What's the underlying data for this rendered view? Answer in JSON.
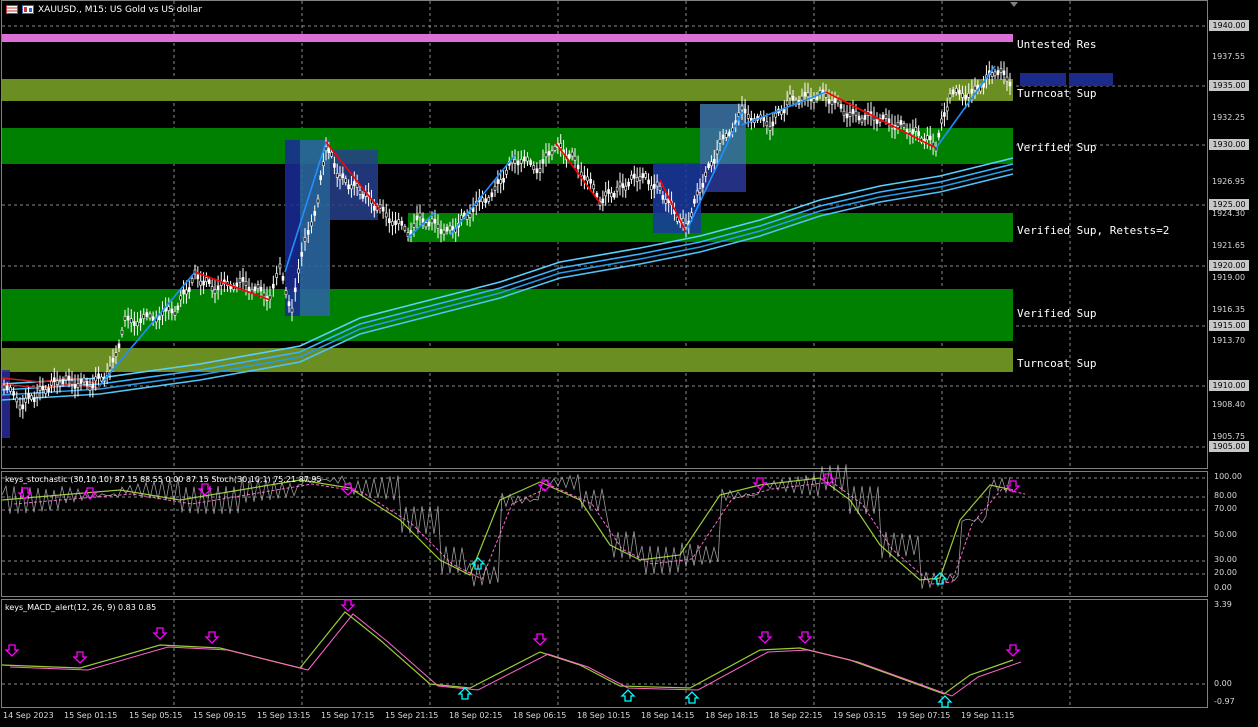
{
  "header": {
    "symbol_line": "XAUUSD., M15: US Gold vs US dollar"
  },
  "toolbar_icons": [
    "chart-grid-icon",
    "chart-type-icon"
  ],
  "zones": [
    {
      "label": "Untested Res"
    },
    {
      "label": "Turncoat Sup"
    },
    {
      "label": "Verified Sup"
    },
    {
      "label": "Verified Sup, Retests=2"
    },
    {
      "label": "Verified Sup"
    },
    {
      "label": "Turncoat Sup"
    }
  ],
  "price_axis": {
    "labels": [
      "1937.55",
      "1932.25",
      "1926.95",
      "1924.30",
      "1921.65",
      "1919.00",
      "1916.35",
      "1913.70",
      "1908.40",
      "1905.75"
    ],
    "highlighted": [
      "1940.00",
      "1935.00",
      "1930.00",
      "1925.00",
      "1920.00",
      "1915.00",
      "1910.00",
      "1905.00"
    ]
  },
  "stochastic": {
    "title": "keys_stochastic (30,10,10) 87.15 88.55 0.00 87.15 Stoch(30,10,1) 75.21 87.95",
    "levels": [
      "100.00",
      "80.00",
      "70.00",
      "50.00",
      "30.00",
      "20.00",
      "0.00"
    ]
  },
  "macd": {
    "title": "keys_MACD_alert(12, 26, 9) 0.83 0.85",
    "levels": [
      "3.39",
      "0.00",
      "-0.97"
    ]
  },
  "time_axis": [
    "14 Sep 2023",
    "15 Sep 01:15",
    "15 Sep 05:15",
    "15 Sep 09:15",
    "15 Sep 13:15",
    "15 Sep 17:15",
    "15 Sep 21:15",
    "18 Sep 02:15",
    "18 Sep 06:15",
    "18 Sep 10:15",
    "18 Sep 14:15",
    "18 Sep 18:15",
    "18 Sep 22:15",
    "19 Sep 03:15",
    "19 Sep 07:15",
    "19 Sep 11:15"
  ],
  "colors": {
    "background": "#000000",
    "candle": "#ffffff",
    "turncoat_zone": "#6b8e23",
    "verified_zone": "#008000",
    "untested_zone": "#da70d6",
    "zigzag_up": "#1e90ff",
    "zigzag_down": "#ff0000",
    "ema": "#00bfff",
    "arrow_sell": "#ff00ff",
    "arrow_buy": "#00ffff"
  }
}
